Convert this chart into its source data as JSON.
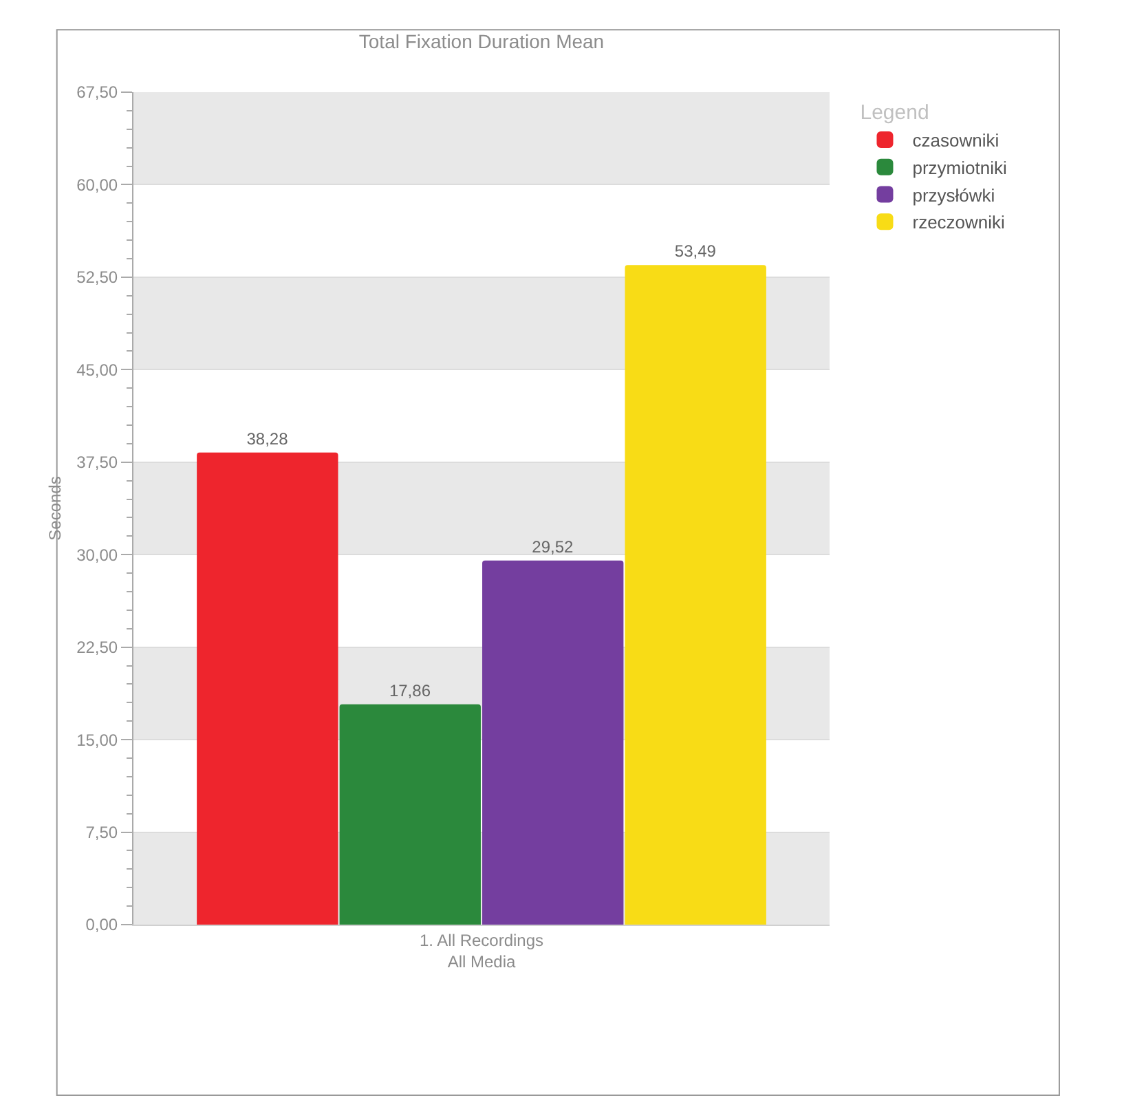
{
  "chart_data": {
    "type": "bar",
    "title": "Total Fixation Duration Mean",
    "ylabel": "Seconds",
    "categories": [
      "1. All Recordings\nAll Media"
    ],
    "series": [
      {
        "name": "czasowniki",
        "color": "#ee252d",
        "values": [
          38.28
        ],
        "value_labels": [
          "38,28"
        ]
      },
      {
        "name": "przymiotniki",
        "color": "#2b893c",
        "values": [
          17.86
        ],
        "value_labels": [
          "17,86"
        ]
      },
      {
        "name": "przysłówki",
        "color": "#743e9f",
        "values": [
          29.52
        ],
        "value_labels": [
          "29,52"
        ]
      },
      {
        "name": "rzeczowniki",
        "color": "#f8dc16",
        "values": [
          53.49
        ],
        "value_labels": [
          "53,49"
        ]
      }
    ],
    "ylim": [
      0,
      67.5
    ],
    "yticks": [
      {
        "value": 0,
        "label": "0,00"
      },
      {
        "value": 7.5,
        "label": "7,50"
      },
      {
        "value": 15,
        "label": "15,00"
      },
      {
        "value": 22.5,
        "label": "22,50"
      },
      {
        "value": 30,
        "label": "30,00"
      },
      {
        "value": 37.5,
        "label": "37,50"
      },
      {
        "value": 45,
        "label": "45,00"
      },
      {
        "value": 52.5,
        "label": "52,50"
      },
      {
        "value": 60,
        "label": "60,00"
      },
      {
        "value": 67.5,
        "label": "67,50"
      }
    ],
    "grid": "y",
    "legend": "top right",
    "legend_title": "Legend"
  }
}
